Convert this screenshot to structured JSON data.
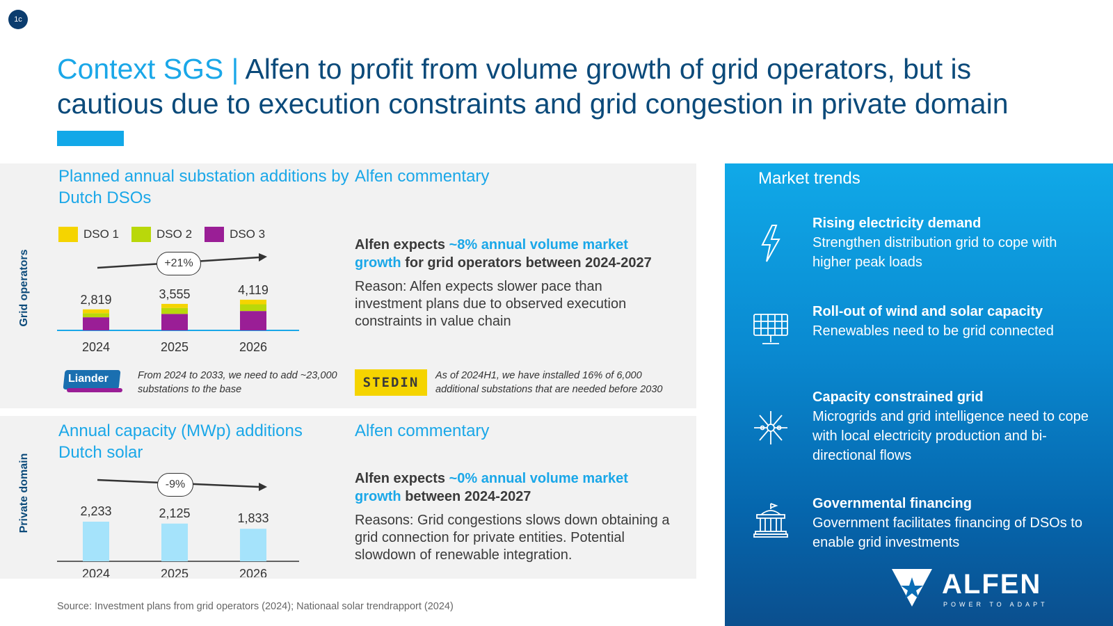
{
  "slide_badge": "1c",
  "title": {
    "accent": "Context SGS | ",
    "main": "Alfen to profit from volume growth of grid operators, but is cautious due to execution constraints and grid congestion in private domain"
  },
  "grid_section": {
    "side_label": "Grid operators",
    "chart_title": "Planned annual substation additions by Dutch DSOs",
    "legend": [
      "DSO 1",
      "DSO 2",
      "DSO 3"
    ],
    "growth_label": "+21%",
    "commentary_title": "Alfen commentary",
    "commentary_heading_1": "Alfen expects ",
    "commentary_highlight": "~8% annual volume market growth",
    "commentary_heading_2": " for grid operators between 2024-2027",
    "commentary_body": "Reason: Alfen expects slower pace than investment plans due to observed execution constraints in value chain",
    "liander_logo": "Liander",
    "liander_note": "From 2024 to 2033, we need to add ~23,000 substations to the base",
    "stedin_logo": "STEDIN",
    "stedin_note": "As of 2024H1, we have installed 16% of  6,000 additional substations that are needed before 2030"
  },
  "private_section": {
    "side_label": "Private domain",
    "chart_title": "Annual capacity (MWp) additions Dutch solar",
    "growth_label": "-9%",
    "commentary_title": "Alfen commentary",
    "commentary_heading_1": "Alfen expects ",
    "commentary_highlight": "~0% annual volume market growth",
    "commentary_heading_2": " between 2024-2027",
    "commentary_body": "Reasons: Grid congestions slows down obtaining a grid connection for private entities. Potential slowdown of renewable integration."
  },
  "market_trends": {
    "title": "Market trends",
    "items": [
      {
        "heading": "Rising electricity demand",
        "body": "Strengthen distribution grid to cope with higher peak loads",
        "icon": "lightning-icon"
      },
      {
        "heading": "Roll-out of wind and solar capacity",
        "body": "Renewables need to be grid connected",
        "icon": "solar-panel-icon"
      },
      {
        "heading": "Capacity constrained grid",
        "body": "Microgrids and grid intelligence need to cope with local electricity production and bi-directional flows",
        "icon": "network-icon"
      },
      {
        "heading": "Governmental financing",
        "body": "Government facilitates financing of DSOs to enable grid investments",
        "icon": "government-building-icon"
      }
    ],
    "logo_name": "ALFEN",
    "logo_tagline": "POWER TO ADAPT"
  },
  "source": "Source: Investment plans from grid operators (2024); Nationaal solar trendrapport (2024)",
  "colors": {
    "dso1": "#f5d400",
    "dso2": "#b9d80a",
    "dso3": "#9a1e96",
    "solar_bar": "#a5e3fb",
    "accent": "#1aa7e8",
    "navy": "#0b4a7a"
  },
  "chart_data": [
    {
      "type": "bar",
      "stacked": true,
      "title": "Planned annual substation additions by Dutch DSOs",
      "categories": [
        "2024",
        "2025",
        "2026"
      ],
      "totals": [
        2819,
        3555,
        4119
      ],
      "total_labels": [
        "2,819",
        "3,555",
        "4,119"
      ],
      "series": [
        {
          "name": "DSO 1",
          "values": [
            509,
            547,
            620
          ]
        },
        {
          "name": "DSO 2",
          "values": [
            550,
            800,
            900
          ]
        },
        {
          "name": "DSO 3",
          "values": [
            1760,
            2208,
            2599
          ]
        }
      ],
      "trend_label": "+21%",
      "ylim": [
        0,
        4200
      ]
    },
    {
      "type": "bar",
      "title": "Annual capacity (MWp) additions Dutch solar",
      "categories": [
        "2024",
        "2025",
        "2026"
      ],
      "values": [
        2233,
        2125,
        1833
      ],
      "value_labels": [
        "2,233",
        "2,125",
        "1,833"
      ],
      "trend_label": "-9%",
      "ylim": [
        0,
        2233
      ]
    }
  ]
}
